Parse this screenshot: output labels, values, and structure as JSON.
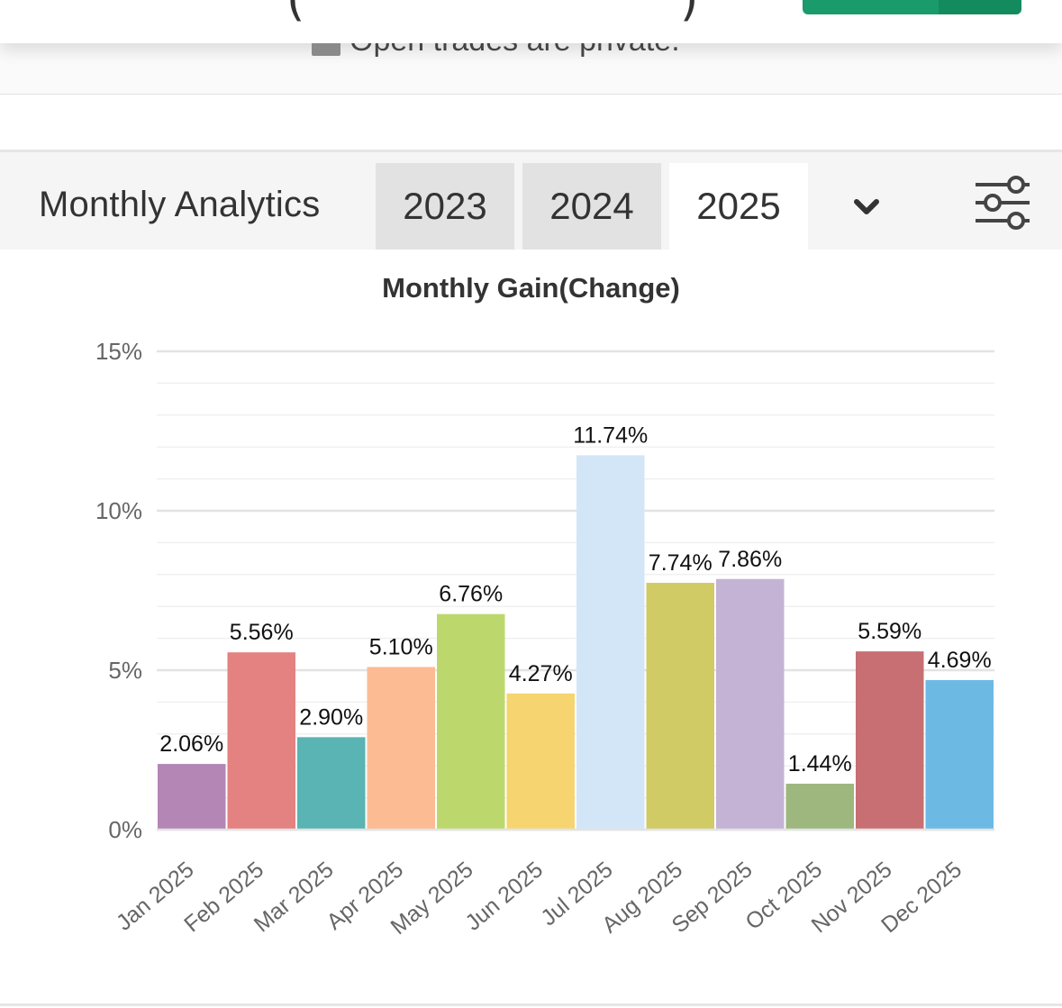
{
  "top_bar": {
    "left_paren": "(",
    "right_paren": ")",
    "private_label": "Open trades are private."
  },
  "analytics": {
    "title": "Monthly Analytics",
    "years": [
      {
        "label": "2023",
        "active": false
      },
      {
        "label": "2024",
        "active": false
      },
      {
        "label": "2025",
        "active": true
      }
    ],
    "dropdown_icon": "chevron-down-icon",
    "filter_icon": "sliders-icon"
  },
  "chart_data": {
    "type": "bar",
    "title": "Monthly Gain(Change)",
    "xlabel": "",
    "ylabel": "",
    "categories": [
      "Jan 2025",
      "Feb 2025",
      "Mar 2025",
      "Apr 2025",
      "May 2025",
      "Jun 2025",
      "Jul 2025",
      "Aug 2025",
      "Sep 2025",
      "Oct 2025",
      "Nov 2025",
      "Dec 2025"
    ],
    "values": [
      2.06,
      5.56,
      2.9,
      5.1,
      6.76,
      4.27,
      11.74,
      7.74,
      7.86,
      1.44,
      5.59,
      4.69
    ],
    "value_labels": [
      "2.06%",
      "5.56%",
      "2.90%",
      "5.10%",
      "6.76%",
      "4.27%",
      "11.74%",
      "7.74%",
      "7.86%",
      "1.44%",
      "5.59%",
      "4.69%"
    ],
    "colors": [
      "#b386b5",
      "#e38280",
      "#59b4b3",
      "#fdbb93",
      "#bcd86d",
      "#f6d571",
      "#d3e6f8",
      "#d1cb66",
      "#c4b3d4",
      "#9db77f",
      "#c76f72",
      "#6cbae4"
    ],
    "y_ticks": [
      0,
      5,
      10,
      15
    ],
    "y_tick_labels": [
      "0%",
      "5%",
      "10%",
      "15%"
    ],
    "ylim": [
      0,
      15
    ],
    "grid": true,
    "legend": "none"
  }
}
